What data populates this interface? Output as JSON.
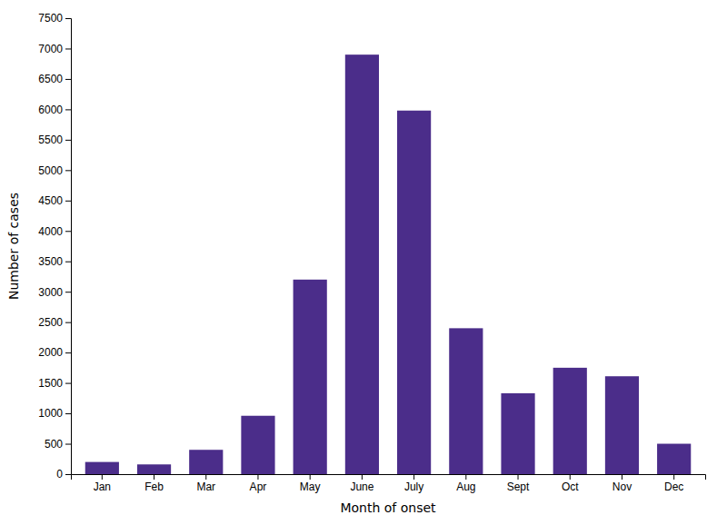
{
  "chart_data": {
    "type": "bar",
    "categories": [
      "Jan",
      "Feb",
      "Mar",
      "Apr",
      "May",
      "June",
      "July",
      "Aug",
      "Sept",
      "Oct",
      "Nov",
      "Dec"
    ],
    "values": [
      200,
      160,
      400,
      960,
      3200,
      6900,
      5980,
      2400,
      1330,
      1750,
      1610,
      500
    ],
    "color": "#4B2D8A",
    "xlabel": "Month of onset",
    "ylabel": "Number of cases",
    "ylim": [
      0,
      7500
    ],
    "yticks": [
      0,
      500,
      1000,
      1500,
      2000,
      2500,
      3000,
      3500,
      4000,
      4500,
      5000,
      5500,
      6000,
      6500,
      7000,
      7500
    ],
    "grid": false
  }
}
